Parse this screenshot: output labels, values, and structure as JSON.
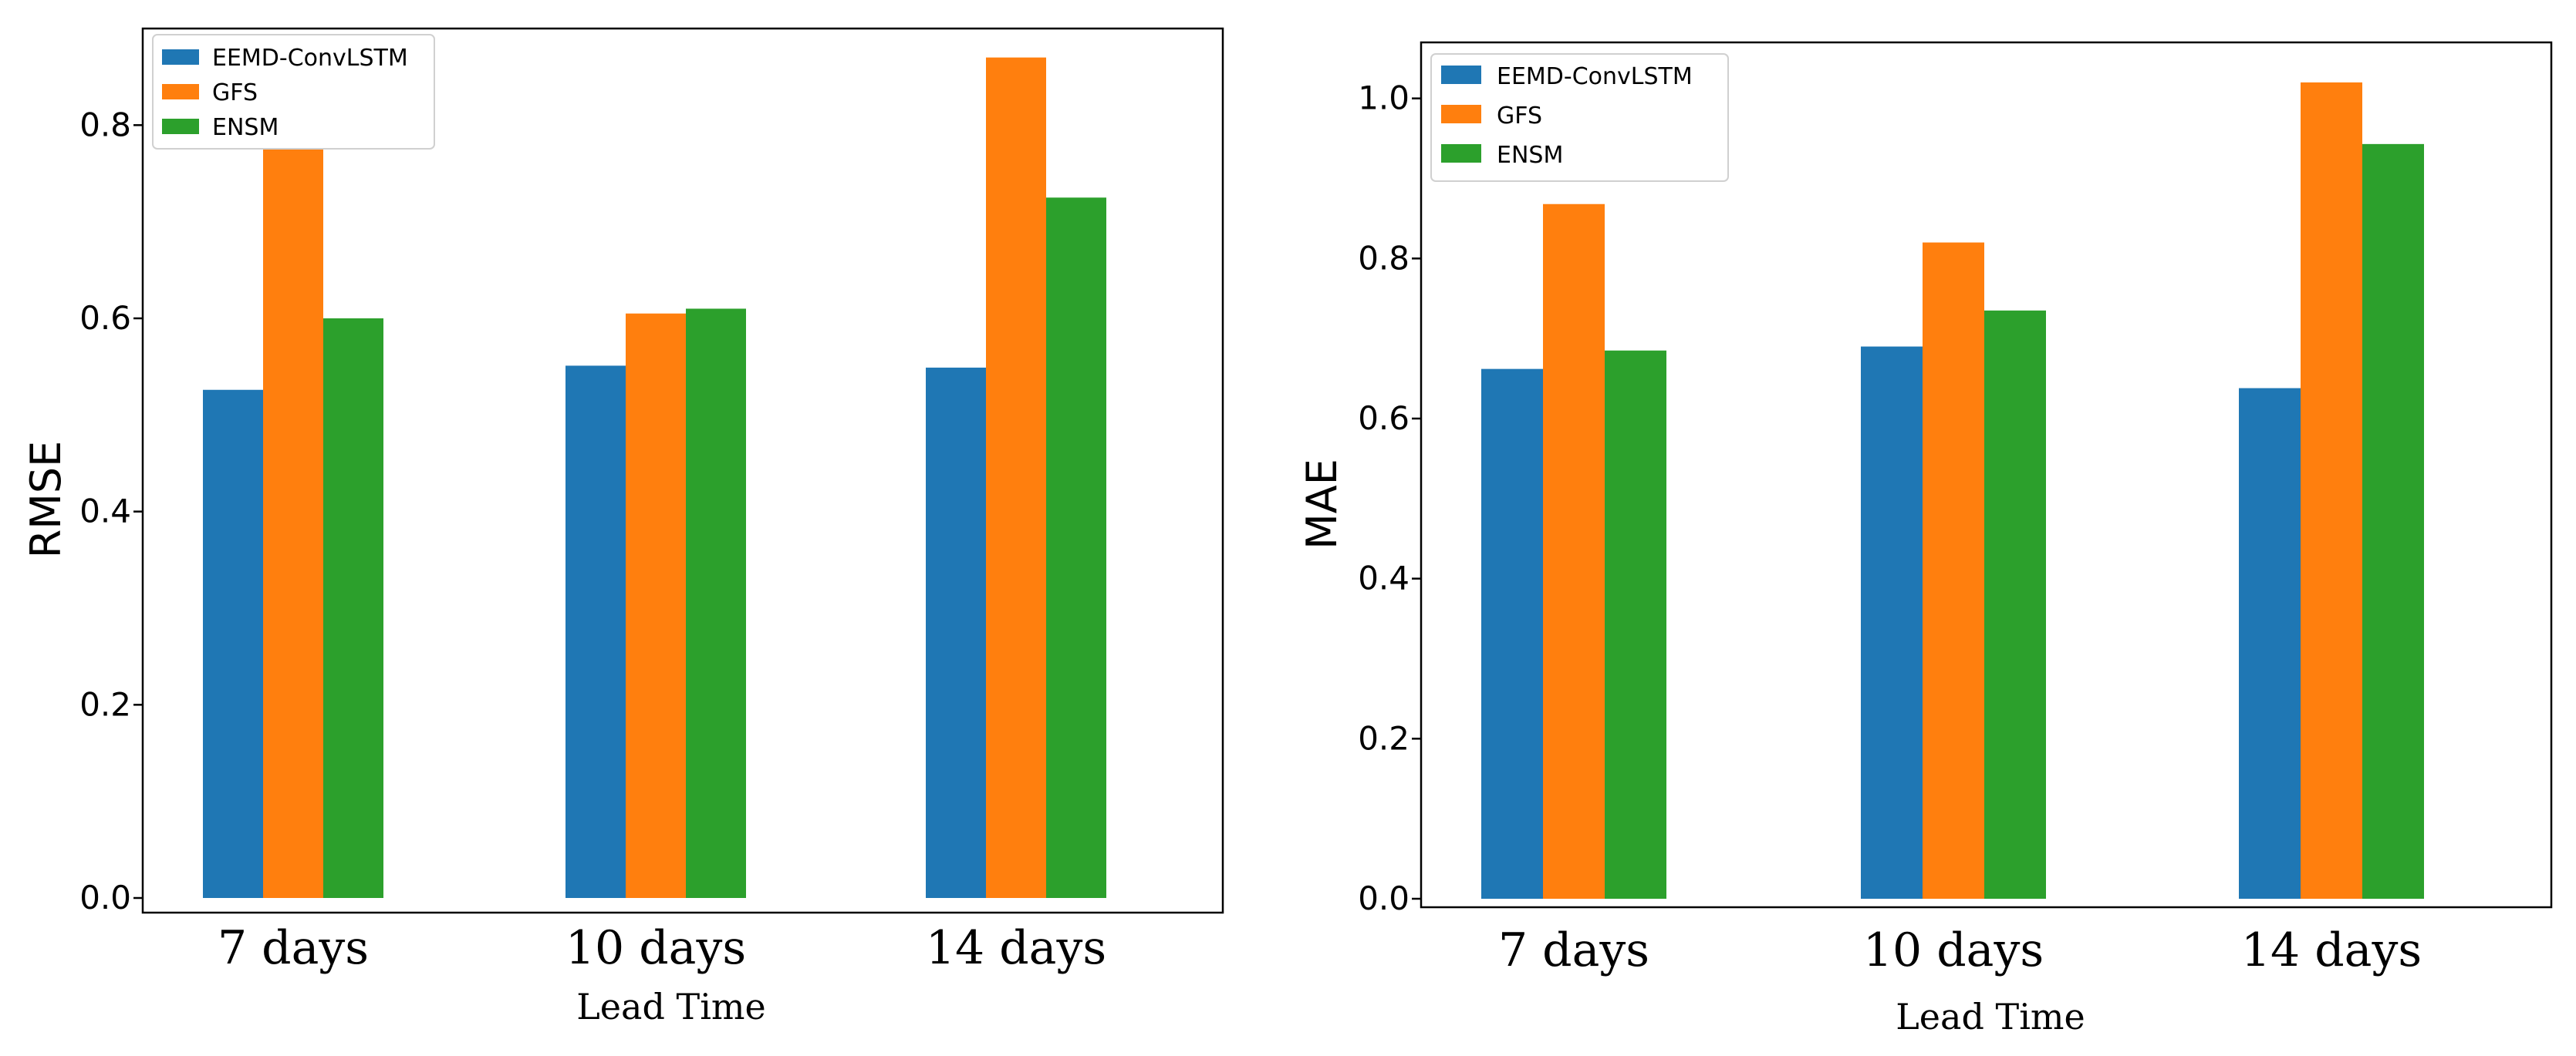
{
  "chart_data": [
    {
      "type": "bar",
      "categories": [
        "7 days",
        "10 days",
        "14 days"
      ],
      "series": [
        {
          "name": "EEMD-ConvLSTM",
          "color": "#1f77b4",
          "values": [
            0.526,
            0.551,
            0.549
          ]
        },
        {
          "name": "GFS",
          "color": "#ff7f0e",
          "values": [
            0.775,
            0.605,
            0.87
          ]
        },
        {
          "name": "ENSM",
          "color": "#2ca02c",
          "values": [
            0.6,
            0.61,
            0.725
          ]
        }
      ],
      "xlabel": "Lead Time",
      "ylabel": "RMSE",
      "ylim": [
        0,
        0.9
      ],
      "yticks": [
        "0.0",
        "0.2",
        "0.4",
        "0.6",
        "0.8"
      ],
      "legend": "top-left",
      "grid": false
    },
    {
      "type": "bar",
      "categories": [
        "7 days",
        "10 days",
        "14 days"
      ],
      "series": [
        {
          "name": "EEMD-ConvLSTM",
          "color": "#1f77b4",
          "values": [
            0.662,
            0.69,
            0.638
          ]
        },
        {
          "name": "GFS",
          "color": "#ff7f0e",
          "values": [
            0.868,
            0.82,
            1.02
          ]
        },
        {
          "name": "ENSM",
          "color": "#2ca02c",
          "values": [
            0.685,
            0.735,
            0.943
          ]
        }
      ],
      "xlabel": "Lead Time",
      "ylabel": "MAE",
      "ylim": [
        0,
        1.07
      ],
      "yticks": [
        "0.0",
        "0.2",
        "0.4",
        "0.6",
        "0.8",
        "1.0"
      ],
      "legend": "top-left",
      "grid": false
    }
  ]
}
